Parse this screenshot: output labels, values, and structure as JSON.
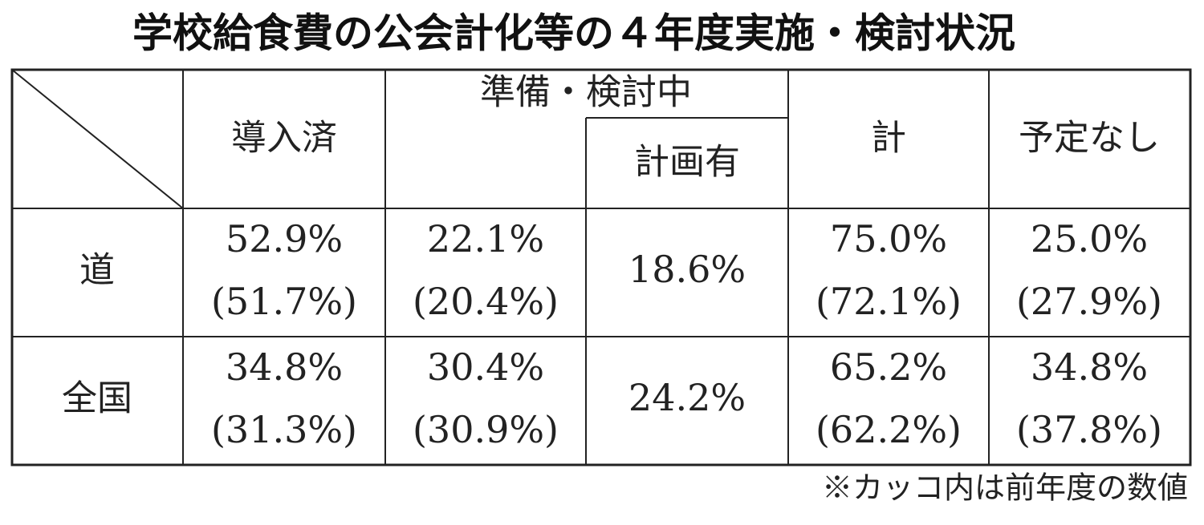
{
  "title": "学校給食費の公会計化等の４年度実施・検討状況",
  "table": {
    "header": [
      "導入済",
      "準備・検討中",
      "計画有",
      "計",
      "予定なし"
    ],
    "rows": [
      {
        "label": "道",
        "cells": [
          [
            "52.9%",
            "(51.7%)"
          ],
          [
            "22.1%",
            "(20.4%)"
          ],
          [
            "18.6%"
          ],
          [
            "75.0%",
            "(72.1%)"
          ],
          [
            "25.0%",
            "(27.9%)"
          ]
        ]
      },
      {
        "label": "全国",
        "cells": [
          [
            "34.8%",
            "(31.3%)"
          ],
          [
            "30.4%",
            "(30.9%)"
          ],
          [
            "24.2%"
          ],
          [
            "65.2%",
            "(62.2%)"
          ],
          [
            "34.8%",
            "(37.8%)"
          ]
        ]
      }
    ]
  },
  "note": "※カッコ内は前年度の数値"
}
